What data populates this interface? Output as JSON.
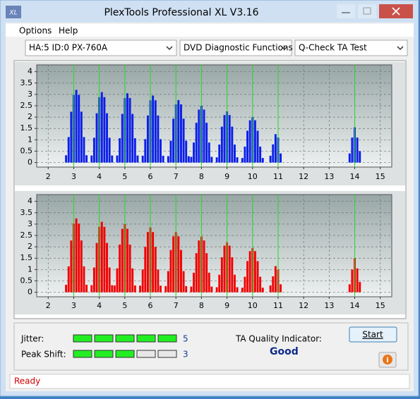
{
  "window": {
    "title": "PlexTools Professional XL V3.16",
    "icon": "XL"
  },
  "menu": [
    "Options",
    "Help"
  ],
  "toolbar": {
    "drive": "HA:5 ID:0  PX-760A",
    "function": "DVD Diagnostic Functions",
    "test": "Q-Check TA Test"
  },
  "chart_data": [
    {
      "type": "bar",
      "color": "#0a1ee8",
      "x": [
        2.7,
        2.8,
        2.9,
        3,
        3.1,
        3.2,
        3.3,
        3.4,
        3.5,
        3.7,
        3.8,
        3.9,
        4,
        4.1,
        4.2,
        4.3,
        4.4,
        4.5,
        4.7,
        4.8,
        4.9,
        5,
        5.1,
        5.2,
        5.3,
        5.4,
        5.5,
        5.7,
        5.8,
        5.9,
        6,
        6.1,
        6.2,
        6.3,
        6.4,
        6.5,
        6.7,
        6.8,
        6.9,
        7,
        7.1,
        7.2,
        7.3,
        7.4,
        7.5,
        7.6,
        7.7,
        7.8,
        7.9,
        8,
        8.1,
        8.2,
        8.3,
        8.4,
        8.6,
        8.7,
        8.8,
        8.9,
        9,
        9.1,
        9.2,
        9.3,
        9.4,
        9.6,
        9.7,
        9.8,
        9.9,
        10,
        10.1,
        10.2,
        10.3,
        10.4,
        10.7,
        10.8,
        10.9,
        11,
        11.1,
        13.8,
        13.9,
        14,
        14.1,
        14.2
      ],
      "values": [
        0.32,
        1.12,
        2.24,
        2.98,
        3.2,
        2.98,
        2.24,
        1.12,
        0.32,
        0.31,
        1.09,
        2.17,
        2.88,
        3.1,
        2.88,
        2.17,
        1.09,
        0.31,
        0.31,
        1.07,
        2.14,
        2.84,
        3.05,
        2.84,
        2.14,
        1.07,
        0.31,
        0.3,
        1.03,
        2.07,
        2.74,
        2.95,
        2.74,
        2.07,
        1.03,
        0.3,
        0.28,
        0.96,
        1.93,
        2.56,
        2.75,
        2.56,
        1.93,
        0.96,
        0.28,
        0.25,
        0.88,
        1.75,
        2.33,
        2.5,
        2.33,
        1.75,
        0.88,
        0.25,
        0.23,
        0.79,
        1.58,
        2.09,
        2.25,
        2.09,
        1.58,
        0.79,
        0.23,
        0.2,
        0.7,
        1.4,
        1.86,
        2,
        1.86,
        1.4,
        0.7,
        0.2,
        0.3,
        0.8,
        1.25,
        1.1,
        0.4,
        0.4,
        1.1,
        1.55,
        1.1,
        0.5
      ],
      "xlim": [
        1.55,
        15.45
      ],
      "ylim": [
        -0.2,
        4.3
      ],
      "xticks": [
        2,
        3,
        4,
        5,
        6,
        7,
        8,
        9,
        10,
        11,
        12,
        13,
        14,
        15
      ],
      "yticks": [
        0,
        0.5,
        1,
        1.5,
        2,
        2.5,
        3,
        3.5,
        4
      ],
      "marker_lines": [
        3,
        4,
        5,
        6,
        7,
        8,
        9,
        10,
        11,
        14
      ],
      "grid": true
    },
    {
      "type": "bar",
      "color": "#f00000",
      "x": [
        2.7,
        2.8,
        2.9,
        3,
        3.1,
        3.2,
        3.3,
        3.4,
        3.5,
        3.7,
        3.8,
        3.9,
        4,
        4.1,
        4.2,
        4.3,
        4.4,
        4.5,
        4.6,
        4.7,
        4.8,
        4.9,
        5,
        5.1,
        5.2,
        5.3,
        5.4,
        5.6,
        5.7,
        5.8,
        5.9,
        6,
        6.1,
        6.2,
        6.3,
        6.4,
        6.6,
        6.7,
        6.8,
        6.9,
        7,
        7.1,
        7.2,
        7.3,
        7.4,
        7.6,
        7.7,
        7.8,
        7.9,
        8,
        8.1,
        8.2,
        8.3,
        8.4,
        8.6,
        8.7,
        8.8,
        8.9,
        9,
        9.1,
        9.2,
        9.3,
        9.4,
        9.6,
        9.7,
        9.8,
        9.9,
        10,
        10.1,
        10.2,
        10.3,
        10.4,
        10.7,
        10.8,
        10.9,
        11,
        11.1,
        13.8,
        13.9,
        14,
        14.1,
        14.2
      ],
      "values": [
        0.33,
        1.14,
        2.28,
        3.02,
        3.25,
        3.02,
        2.28,
        1.14,
        0.33,
        0.31,
        1.09,
        2.17,
        2.88,
        3.1,
        2.88,
        2.17,
        1.09,
        0.31,
        0.3,
        1.05,
        2.1,
        2.79,
        3,
        2.79,
        2.1,
        1.05,
        0.3,
        0.29,
        1,
        2,
        2.65,
        2.85,
        2.65,
        2,
        1,
        0.29,
        0.27,
        0.93,
        1.86,
        2.46,
        2.65,
        2.46,
        1.86,
        0.93,
        0.27,
        0.25,
        0.86,
        1.72,
        2.28,
        2.45,
        2.28,
        1.72,
        0.86,
        0.25,
        0.22,
        0.77,
        1.54,
        2.05,
        2.2,
        2.05,
        1.54,
        0.77,
        0.22,
        0.2,
        0.68,
        1.37,
        1.81,
        1.95,
        1.81,
        1.37,
        0.68,
        0.2,
        0.3,
        0.7,
        1.15,
        1,
        0.35,
        0.35,
        1,
        1.5,
        1.05,
        0.45
      ],
      "xlim": [
        1.55,
        15.45
      ],
      "ylim": [
        -0.2,
        4.3
      ],
      "xticks": [
        2,
        3,
        4,
        5,
        6,
        7,
        8,
        9,
        10,
        11,
        12,
        13,
        14,
        15
      ],
      "yticks": [
        0,
        0.5,
        1,
        1.5,
        2,
        2.5,
        3,
        3.5,
        4
      ],
      "marker_lines": [
        3,
        4,
        5,
        6,
        7,
        8,
        9,
        10,
        11,
        14
      ],
      "grid": true
    }
  ],
  "results": {
    "jitter": {
      "label": "Jitter:",
      "value": 5
    },
    "peak_shift": {
      "label": "Peak Shift:",
      "value": 3
    },
    "quality_label": "TA Quality Indicator:",
    "quality": "Good",
    "start": "Start",
    "info": "i"
  },
  "status": "Ready"
}
